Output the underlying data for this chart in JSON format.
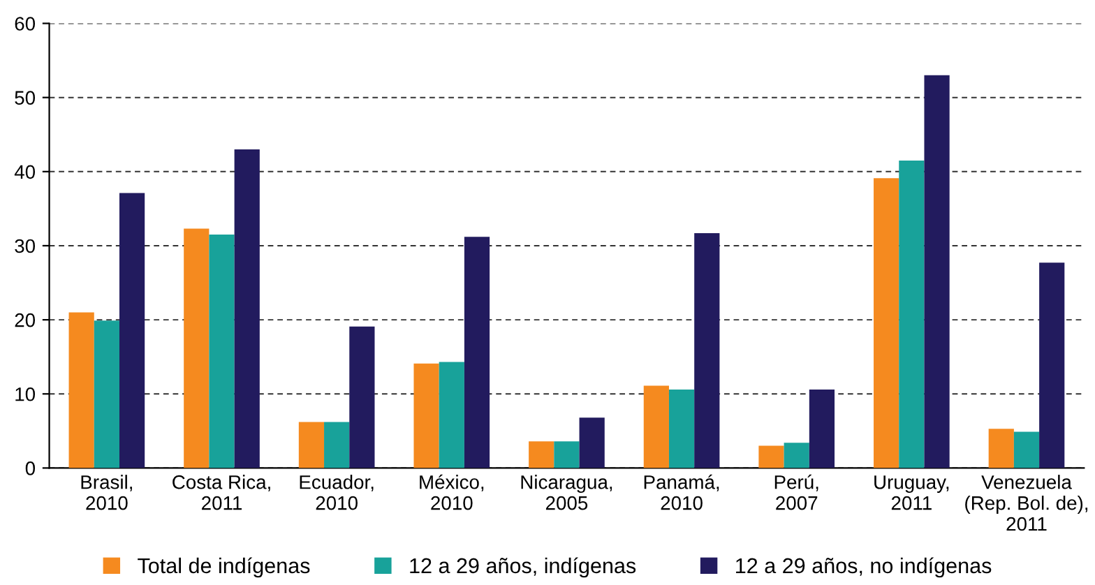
{
  "chart_data": {
    "type": "bar",
    "categories": [
      "Brasil,\n2010",
      "Costa Rica,\n2011",
      "Ecuador,\n2010",
      "México,\n2010",
      "Nicaragua,\n2005",
      "Panamá,\n2010",
      "Perú,\n2007",
      "Uruguay,\n2011",
      "Venezuela\n(Rep. Bol. de),\n2011"
    ],
    "series": [
      {
        "name": "Total de indígenas",
        "color": "#f58a1f",
        "values": [
          21.0,
          32.3,
          6.2,
          14.1,
          3.6,
          11.1,
          3.0,
          39.1,
          5.3
        ]
      },
      {
        "name": "12 a 29 años, indígenas",
        "color": "#18a29a",
        "values": [
          19.9,
          31.5,
          6.2,
          14.3,
          3.6,
          10.6,
          3.4,
          41.5,
          4.9
        ]
      },
      {
        "name": "12 a 29 años, no indígenas",
        "color": "#221b5e",
        "values": [
          37.1,
          43.0,
          19.1,
          31.2,
          6.8,
          31.7,
          10.6,
          53.0,
          27.7
        ]
      }
    ],
    "ylim": [
      0,
      60
    ],
    "yticks": [
      0,
      10,
      20,
      30,
      40,
      50,
      60
    ],
    "grid": "y",
    "legend": "bottom"
  }
}
